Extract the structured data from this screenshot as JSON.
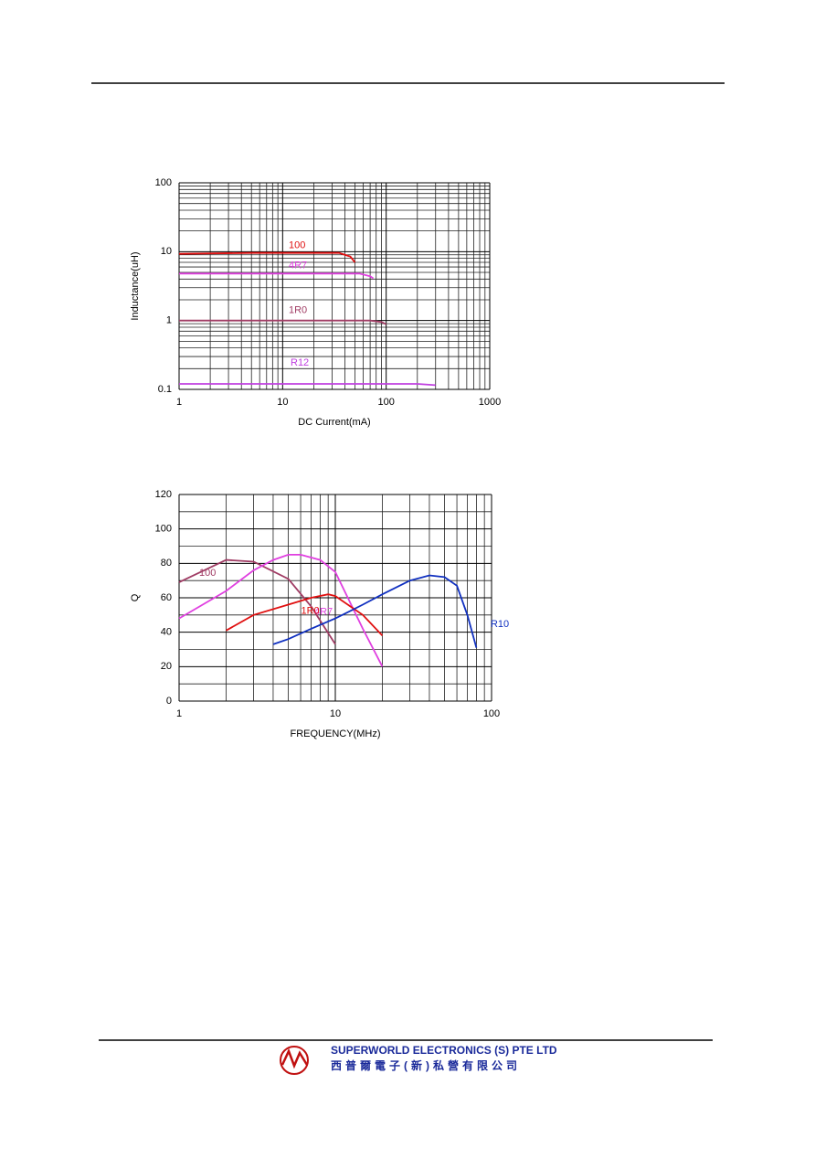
{
  "chart_data": [
    {
      "type": "line",
      "xlog": true,
      "ylog": true,
      "grid": true,
      "minor_grid": true,
      "xlabel": "DC Current(mA)",
      "ylabel": "Inductance(uH)",
      "xlim": [
        1,
        1000
      ],
      "ylim": [
        0.1,
        100
      ],
      "xticks": [
        1,
        10,
        100,
        1000
      ],
      "yticks": [
        0.1,
        1,
        10,
        100
      ],
      "series": [
        {
          "name": "100",
          "color": "#e01010",
          "x": [
            1,
            5,
            35,
            45,
            50
          ],
          "values": [
            9.3,
            9.6,
            9.6,
            8.5,
            7
          ]
        },
        {
          "name": "4R7",
          "color": "#e040e0",
          "x": [
            1,
            55,
            70,
            75
          ],
          "values": [
            4.8,
            4.8,
            4.4,
            4.1
          ]
        },
        {
          "name": "1R0",
          "color": "#a03c64",
          "x": [
            1,
            70,
            90,
            100
          ],
          "values": [
            1.0,
            1.0,
            0.95,
            0.88
          ]
        },
        {
          "name": "R12",
          "color": "#c040e0",
          "x": [
            1,
            200,
            300
          ],
          "values": [
            0.12,
            0.12,
            0.115
          ]
        }
      ]
    },
    {
      "type": "line",
      "xlog": true,
      "ylog": false,
      "grid": true,
      "minor_grid": true,
      "xlabel": "FREQUENCY(MHz)",
      "ylabel": "Q",
      "xlim": [
        1,
        100
      ],
      "ylim": [
        0,
        120
      ],
      "xticks": [
        1,
        10,
        100
      ],
      "yticks": [
        0,
        20,
        40,
        60,
        80,
        100,
        120
      ],
      "series": [
        {
          "name": "100",
          "color": "#a03c64",
          "x": [
            1,
            2,
            3,
            5,
            7,
            10
          ],
          "values": [
            69,
            82,
            81,
            71,
            55,
            33
          ]
        },
        {
          "name": "4R7",
          "color": "#e040e0",
          "x": [
            1,
            2,
            3,
            4,
            5,
            6,
            8,
            10,
            15,
            20
          ],
          "values": [
            48,
            64,
            76,
            82,
            85,
            85,
            82,
            75,
            42,
            20
          ]
        },
        {
          "name": "1R0",
          "color": "#e01010",
          "x": [
            2,
            3,
            5,
            7,
            9,
            10,
            15,
            20
          ],
          "values": [
            41,
            50,
            56,
            60,
            62,
            61,
            50,
            38
          ]
        },
        {
          "name": "R10",
          "color": "#1030c0",
          "x": [
            4,
            5,
            7,
            10,
            15,
            20,
            30,
            40,
            50,
            60,
            70,
            80
          ],
          "values": [
            33,
            36,
            42,
            48,
            56,
            62,
            70,
            73,
            72,
            67,
            50,
            31
          ]
        }
      ]
    }
  ],
  "footer": {
    "company": "SUPERWORLD ELECTRONICS (S) PTE LTD",
    "company_chinese": "西普爾電子(新)私營有限公司"
  }
}
